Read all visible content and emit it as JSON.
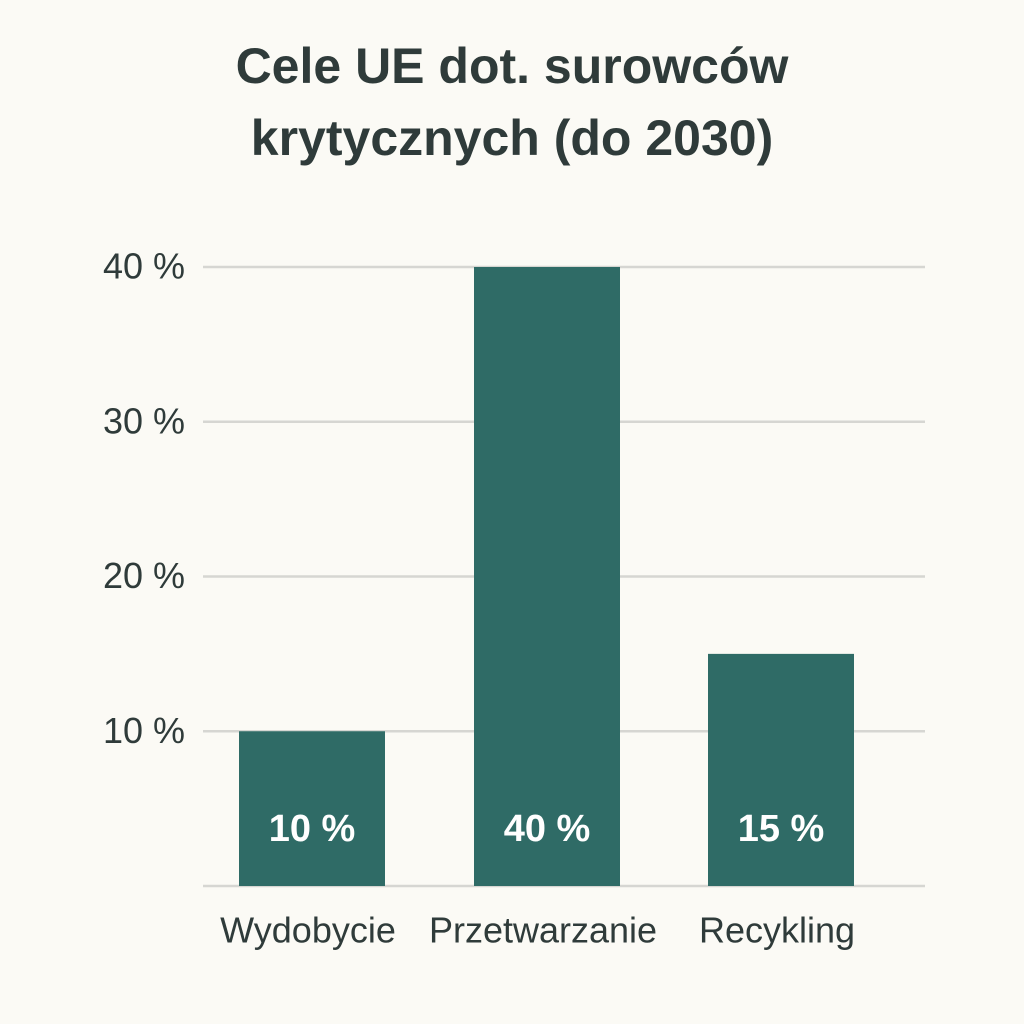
{
  "chart_data": {
    "type": "bar",
    "title": "Cele UE dot. surowców krytycznych (do 2030)",
    "categories": [
      "Wydobycie",
      "Przetwarzanie",
      "Recykling"
    ],
    "values": [
      10,
      40,
      15
    ],
    "value_labels": [
      "10 %",
      "40 %",
      "15 %"
    ],
    "color": "#2f6b66",
    "ylim": [
      0,
      40
    ],
    "yticks": [
      {
        "value": 10,
        "label": "10 %"
      },
      {
        "value": 20,
        "label": "20 %"
      },
      {
        "value": 30,
        "label": "30 %"
      },
      {
        "value": 40,
        "label": "40 %"
      }
    ],
    "grid": true
  }
}
